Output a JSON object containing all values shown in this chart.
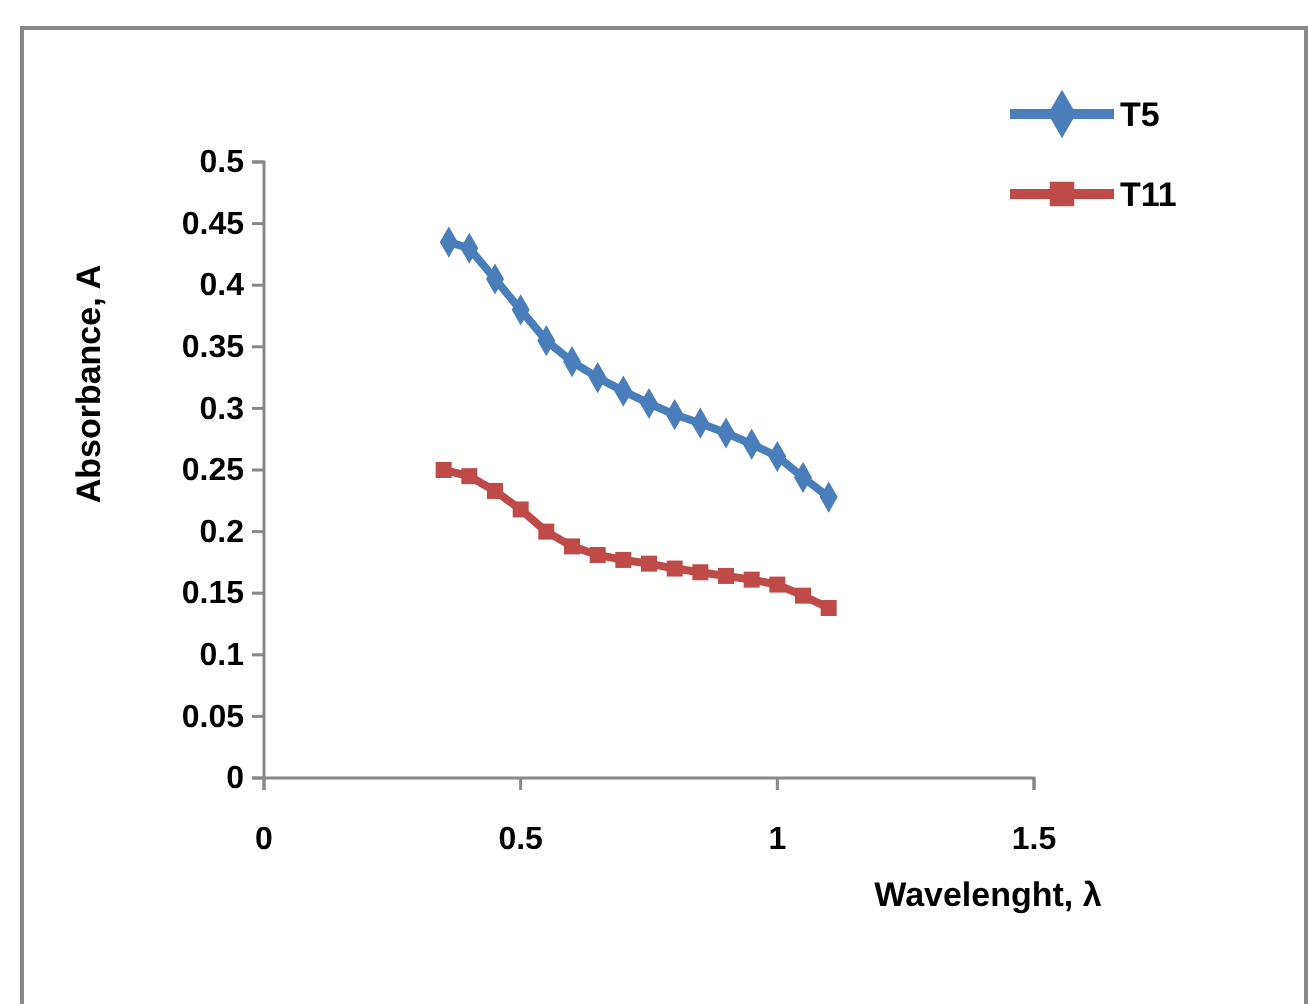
{
  "chart_data": {
    "type": "line",
    "xlabel": "Wavelenght, λ",
    "ylabel": "Absorbance, A",
    "xlim": [
      0,
      1.5
    ],
    "xticks": [
      0,
      0.5,
      1,
      1.5
    ],
    "ylim": [
      0,
      0.5
    ],
    "yticks": [
      0,
      0.05,
      0.1,
      0.15,
      0.2,
      0.25,
      0.3,
      0.35,
      0.4,
      0.45,
      0.5
    ],
    "grid": false,
    "legend": "top right",
    "series": [
      {
        "name": "T5",
        "color": "#4a7ebb",
        "marker": "diamond",
        "x": [
          0.36,
          0.4,
          0.45,
          0.5,
          0.55,
          0.6,
          0.65,
          0.7,
          0.75,
          0.8,
          0.85,
          0.9,
          0.95,
          1.0,
          1.05,
          1.1
        ],
        "values": [
          0.435,
          0.43,
          0.405,
          0.38,
          0.355,
          0.338,
          0.325,
          0.314,
          0.304,
          0.295,
          0.288,
          0.28,
          0.271,
          0.261,
          0.244,
          0.228
        ]
      },
      {
        "name": "T11",
        "color": "#be4b48",
        "marker": "square",
        "x": [
          0.35,
          0.4,
          0.45,
          0.5,
          0.55,
          0.6,
          0.65,
          0.7,
          0.75,
          0.8,
          0.85,
          0.9,
          0.95,
          1.0,
          1.05,
          1.1
        ],
        "values": [
          0.25,
          0.245,
          0.233,
          0.218,
          0.2,
          0.188,
          0.181,
          0.177,
          0.174,
          0.17,
          0.167,
          0.164,
          0.161,
          0.157,
          0.148,
          0.138
        ]
      }
    ]
  }
}
